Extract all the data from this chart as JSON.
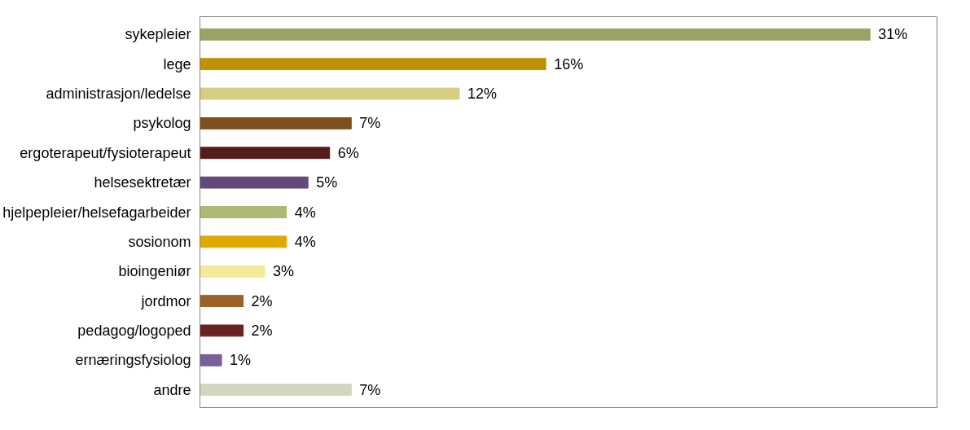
{
  "chart_data": {
    "type": "bar",
    "orientation": "horizontal",
    "categories": [
      "sykepleier",
      "lege",
      "administrasjon/ledelse",
      "psykolog",
      "ergoterapeut/fysioterapeut",
      "helsesektretær",
      "hjelpepleier/helsefagarbeider",
      "sosionom",
      "bioingeniør",
      "jordmor",
      "pedagog/logoped",
      "ernæringsfysiolog",
      "andre"
    ],
    "values": [
      31,
      16,
      12,
      7,
      6,
      5,
      4,
      4,
      3,
      2,
      2,
      1,
      7
    ],
    "value_labels": [
      "31%",
      "16%",
      "12%",
      "7%",
      "6%",
      "5%",
      "4%",
      "4%",
      "3%",
      "2%",
      "2%",
      "1%",
      "7%"
    ],
    "colors": [
      "#98a463",
      "#bf9000",
      "#d5ce82",
      "#7f4f1c",
      "#561c1c",
      "#604a7b",
      "#acb873",
      "#e0a900",
      "#f3eb9a",
      "#9b6127",
      "#6a2121",
      "#7a5f9c",
      "#d2d6be"
    ],
    "grid": false
  }
}
